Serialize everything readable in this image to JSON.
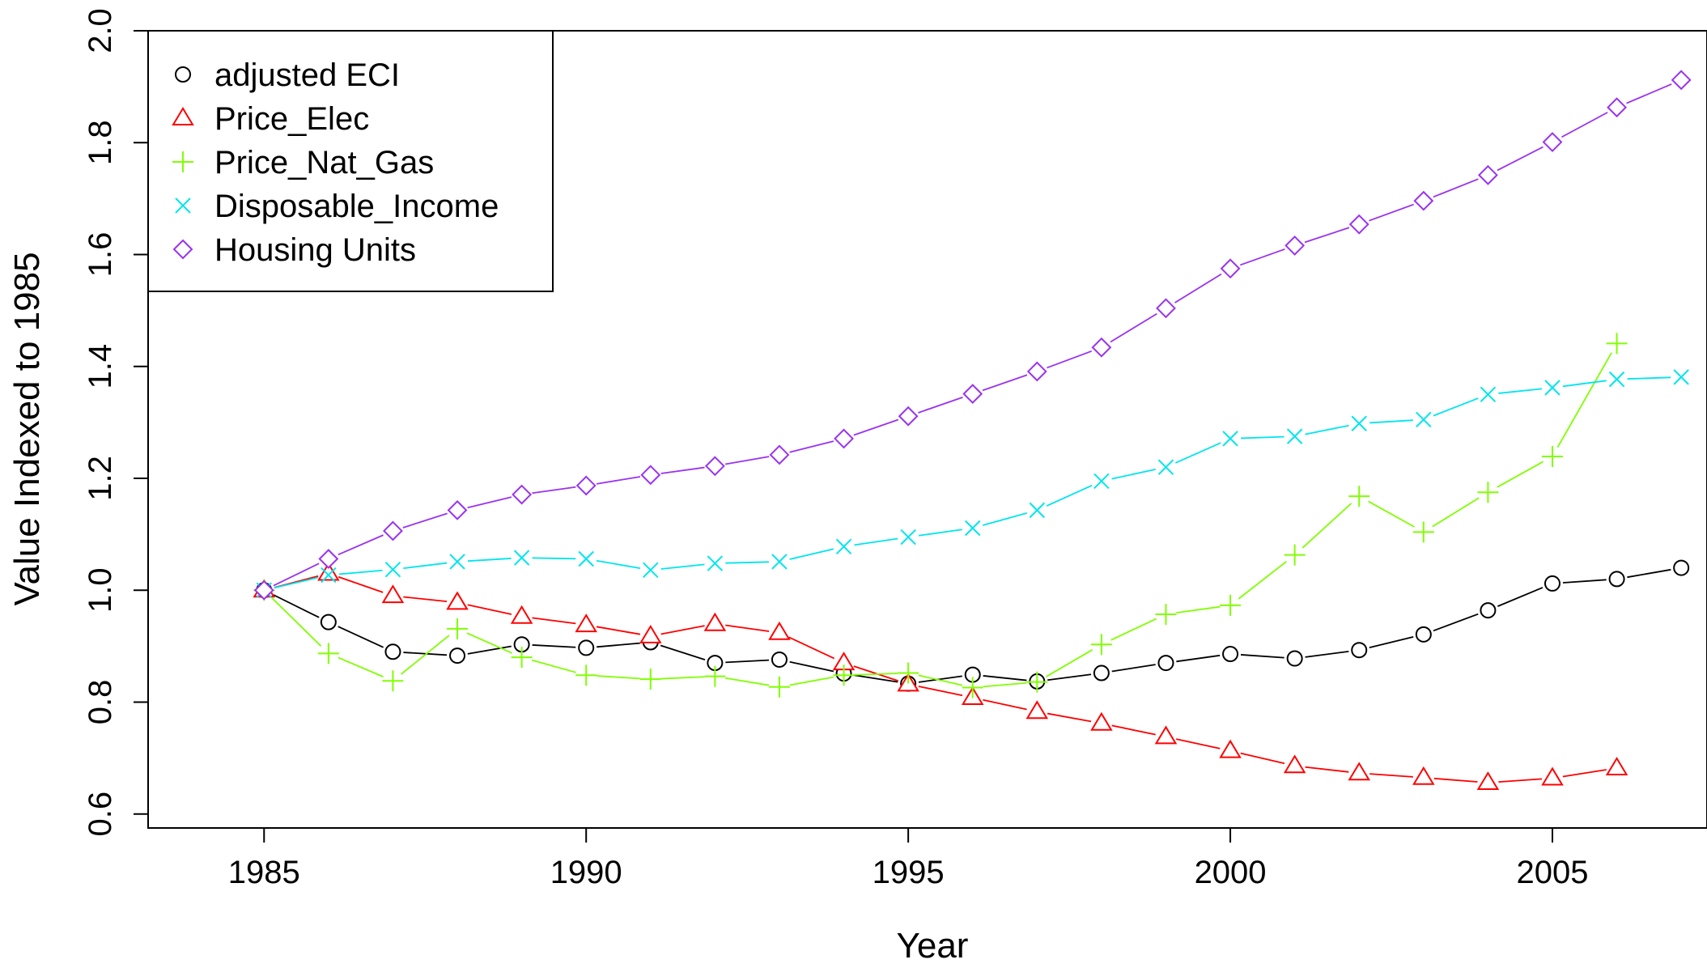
{
  "chart_data": {
    "type": "line",
    "title": "",
    "xlabel": "Year",
    "ylabel": "Value Indexed to 1985",
    "xlim": [
      1983.2,
      2007.4
    ],
    "ylim": [
      0.575,
      2.0
    ],
    "xticks": [
      1985,
      1990,
      1995,
      2000,
      2005
    ],
    "yticks": [
      0.6,
      0.8,
      1.0,
      1.2,
      1.4,
      1.6,
      1.8,
      2.0
    ],
    "xtick_labels": [
      "1985",
      "1990",
      "1995",
      "2000",
      "2005"
    ],
    "ytick_labels": [
      "0.6",
      "0.8",
      "1.0",
      "1.2",
      "1.4",
      "1.6",
      "1.8",
      "2.0"
    ],
    "grid": false,
    "legend_position": "top-left",
    "series": [
      {
        "name": "adjusted ECI",
        "color": "#000000",
        "marker": "circle",
        "x": [
          1985,
          1986,
          1987,
          1988,
          1989,
          1990,
          1991,
          1992,
          1993,
          1994,
          1995,
          1996,
          1997,
          1998,
          1999,
          2000,
          2001,
          2002,
          2003,
          2004,
          2005,
          2006,
          2007
        ],
        "values": [
          1.0,
          0.943,
          0.89,
          0.883,
          0.903,
          0.897,
          0.907,
          0.87,
          0.876,
          0.851,
          0.833,
          0.849,
          0.837,
          0.852,
          0.87,
          0.886,
          0.878,
          0.893,
          0.921,
          0.964,
          1.012,
          1.02,
          1.04
        ]
      },
      {
        "name": "Price_Elec",
        "color": "#ff0000",
        "marker": "triangle",
        "x": [
          1985,
          1986,
          1987,
          1988,
          1989,
          1990,
          1991,
          1992,
          1993,
          1994,
          1995,
          1996,
          1997,
          1998,
          1999,
          2000,
          2001,
          2002,
          2003,
          2004,
          2005,
          2006
        ],
        "values": [
          1.0,
          1.03,
          0.99,
          0.978,
          0.953,
          0.938,
          0.918,
          0.94,
          0.924,
          0.87,
          0.832,
          0.808,
          0.783,
          0.762,
          0.738,
          0.713,
          0.686,
          0.673,
          0.665,
          0.656,
          0.664,
          0.682
        ]
      },
      {
        "name": "Price_Nat_Gas",
        "color": "#80ff00",
        "marker": "plus",
        "x": [
          1985,
          1986,
          1987,
          1988,
          1989,
          1990,
          1991,
          1992,
          1993,
          1994,
          1995,
          1996,
          1997,
          1998,
          1999,
          2000,
          2001,
          2002,
          2003,
          2004,
          2005,
          2006
        ],
        "values": [
          1.0,
          0.887,
          0.838,
          0.931,
          0.88,
          0.848,
          0.841,
          0.846,
          0.827,
          0.848,
          0.852,
          0.826,
          0.836,
          0.903,
          0.957,
          0.973,
          1.063,
          1.168,
          1.104,
          1.175,
          1.239,
          1.441
        ]
      },
      {
        "name": "Disposable_Income",
        "color": "#00e5ee",
        "marker": "x",
        "x": [
          1985,
          1986,
          1987,
          1988,
          1989,
          1990,
          1991,
          1992,
          1993,
          1994,
          1995,
          1996,
          1997,
          1998,
          1999,
          2000,
          2001,
          2002,
          2003,
          2004,
          2005,
          2006,
          2007
        ],
        "values": [
          1.0,
          1.027,
          1.037,
          1.051,
          1.058,
          1.056,
          1.036,
          1.048,
          1.051,
          1.078,
          1.095,
          1.111,
          1.143,
          1.195,
          1.22,
          1.271,
          1.275,
          1.298,
          1.305,
          1.35,
          1.362,
          1.377,
          1.381
        ]
      },
      {
        "name": "Housing Units",
        "color": "#9a32f0",
        "marker": "diamond",
        "x": [
          1985,
          1986,
          1987,
          1988,
          1989,
          1990,
          1991,
          1992,
          1993,
          1994,
          1995,
          1996,
          1997,
          1998,
          1999,
          2000,
          2001,
          2002,
          2003,
          2004,
          2005,
          2006,
          2007
        ],
        "values": [
          1.0,
          1.056,
          1.106,
          1.143,
          1.171,
          1.187,
          1.206,
          1.222,
          1.242,
          1.271,
          1.311,
          1.351,
          1.391,
          1.434,
          1.504,
          1.575,
          1.616,
          1.654,
          1.696,
          1.742,
          1.801,
          1.863,
          1.912
        ]
      }
    ]
  }
}
